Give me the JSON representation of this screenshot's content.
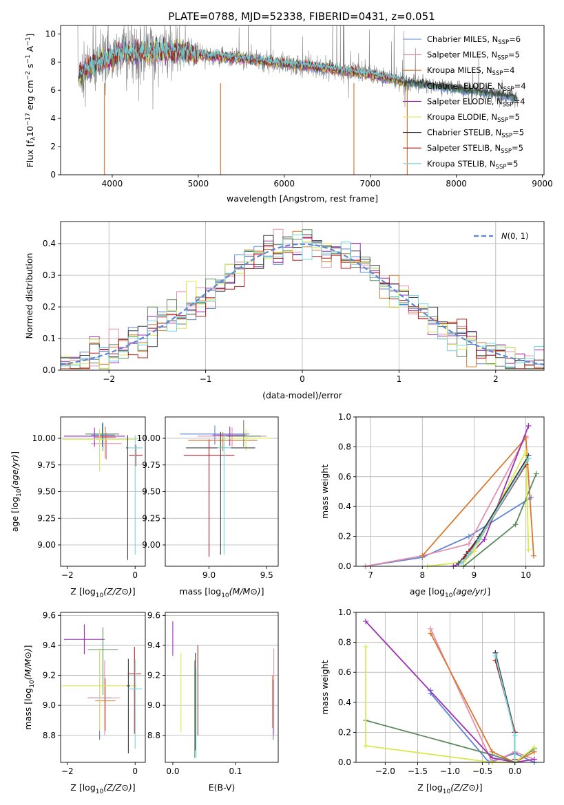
{
  "figure": {
    "title": "PLATE=0788, MJD=52338, FIBERID=0431, z=0.051"
  },
  "colors": {
    "Chabrier MILES": "#5b84d6",
    "Salpeter MILES": "#e58fb0",
    "Kroupa MILES": "#d8782d",
    "Chabrier ELODIE": "#5c8a5c",
    "Salpeter ELODIE": "#9b30b5",
    "Kroupa ELODIE": "#d9e84e",
    "Chabrier STELIB": "#3d3d3d",
    "Salpeter STELIB": "#b01f1f",
    "Kroupa STELIB": "#72d7de",
    "data": "#7f7f7f",
    "normal": "#5b84d6"
  },
  "chart_data": [
    {
      "id": "spectrum",
      "type": "line",
      "title": "PLATE=0788, MJD=52338, FIBERID=0431, z=0.051",
      "xlabel": "wavelength [Angstrom, rest frame]",
      "ylabel_parts": [
        "Flux [f",
        "λ",
        "10",
        "−17",
        " erg cm",
        "−2",
        " s",
        "−1",
        " A",
        "−1",
        "]"
      ],
      "xlim": [
        3400,
        9020
      ],
      "ylim": [
        0,
        10.6
      ],
      "xticks": [
        4000,
        5000,
        6000,
        7000,
        8000,
        9000
      ],
      "yticks": [
        0,
        2,
        4,
        6,
        8,
        10
      ],
      "legend_location": "upper right",
      "legend": [
        {
          "label": "Chabrier MILES, N",
          "sub": "SSP",
          "suffix": "=6",
          "key": "Chabrier MILES"
        },
        {
          "label": "Salpeter MILES, N",
          "sub": "SSP",
          "suffix": "=5",
          "key": "Salpeter MILES"
        },
        {
          "label": "Kroupa MILES, N",
          "sub": "SSP",
          "suffix": "=4",
          "key": "Kroupa MILES"
        },
        {
          "label": "Chabrier ELODIE, N",
          "sub": "SSP",
          "suffix": "=4",
          "key": "Chabrier ELODIE"
        },
        {
          "label": "Salpeter ELODIE, N",
          "sub": "SSP",
          "suffix": "=4",
          "key": "Salpeter ELODIE"
        },
        {
          "label": "Kroupa ELODIE, N",
          "sub": "SSP",
          "suffix": "=5",
          "key": "Kroupa ELODIE"
        },
        {
          "label": "Chabrier STELIB, N",
          "sub": "SSP",
          "suffix": "=5",
          "key": "Chabrier STELIB"
        },
        {
          "label": "Salpeter STELIB, N",
          "sub": "SSP",
          "suffix": "=5",
          "key": "Salpeter STELIB"
        },
        {
          "label": "Kroupa STELIB, N",
          "sub": "SSP",
          "suffix": "=5",
          "key": "Kroupa STELIB"
        }
      ],
      "model_continuum": {
        "x": [
          3600,
          3700,
          3800,
          3900,
          4000,
          4100,
          4200,
          4300,
          4400,
          4600,
          4800,
          5000,
          5200,
          5400,
          5600,
          5800,
          6000,
          6200,
          6400,
          6600,
          6800,
          7000,
          7200,
          7400,
          7600,
          7800,
          8000,
          8200,
          8400,
          8600,
          8700
        ],
        "y": [
          7.0,
          7.4,
          7.8,
          8.1,
          8.4,
          8.6,
          8.7,
          8.6,
          8.7,
          8.8,
          8.7,
          8.6,
          8.4,
          8.3,
          8.2,
          8.0,
          7.9,
          7.75,
          7.6,
          7.45,
          7.3,
          7.1,
          6.9,
          6.6,
          6.45,
          6.3,
          6.1,
          5.95,
          5.8,
          5.6,
          5.45
        ]
      },
      "data_range": [
        3600,
        8720
      ]
    },
    {
      "id": "residual-histogram",
      "type": "line",
      "xlabel": "(data-model)/error",
      "ylabel": "Normed distribution",
      "xlim": [
        -2.5,
        2.5
      ],
      "ylim": [
        0,
        0.47
      ],
      "xticks": [
        -2,
        -1,
        0,
        1,
        2
      ],
      "xtick_labels": [
        "−2",
        "−1",
        "0",
        "1",
        "2"
      ],
      "yticks": [
        0.0,
        0.1,
        0.2,
        0.3,
        0.4
      ],
      "ytick_labels": [
        "0.0",
        "0.1",
        "0.2",
        "0.3",
        "0.4"
      ],
      "grid": true,
      "legend_location": "upper right",
      "legend": [
        {
          "label": "N(0, 1)",
          "key": "normal",
          "style": "dashed"
        }
      ],
      "bins": {
        "start": -2.5,
        "width": 0.1,
        "count": 50
      }
    },
    {
      "id": "age-vs-Z",
      "type": "scatter",
      "xlabel": "Z [log10(Z/Z⊙)]",
      "ylabel": "age  [log10(age/yr)]",
      "xlim": [
        -2.2,
        0.3
      ],
      "ylim": [
        8.8,
        10.2
      ],
      "xticks": [
        -2,
        0
      ],
      "xtick_labels": [
        "−2",
        "0"
      ],
      "yticks": [
        9.0,
        9.25,
        9.5,
        9.75,
        10.0
      ],
      "ytick_labels": [
        "9.00",
        "9.25",
        "9.50",
        "9.75",
        "10.00"
      ],
      "points": [
        {
          "key": "Chabrier MILES",
          "x": -0.95,
          "xerr": 0.35,
          "y": 10.03,
          "yerr": [
            0.15,
            0.12
          ]
        },
        {
          "key": "Salpeter MILES",
          "x": -0.85,
          "xerr": 0.45,
          "y": 9.95,
          "yerr": [
            0.15,
            0.1
          ]
        },
        {
          "key": "Kroupa MILES",
          "x": -0.88,
          "xerr": 0.3,
          "y": 10.01,
          "yerr": [
            0.2,
            0.1
          ]
        },
        {
          "key": "Chabrier ELODIE",
          "x": -0.97,
          "xerr": 0.5,
          "y": 10.04,
          "yerr": [
            0.12,
            0.1
          ]
        },
        {
          "key": "Salpeter ELODIE",
          "x": -1.2,
          "xerr": 0.9,
          "y": 10.02,
          "yerr": [
            0.1,
            0.08
          ]
        },
        {
          "key": "Kroupa ELODIE",
          "x": -1.05,
          "xerr": 1.1,
          "y": 9.99,
          "yerr": [
            0.3,
            0.1
          ]
        },
        {
          "key": "Chabrier STELIB",
          "x": -0.22,
          "xerr": 0.05,
          "y": 9.91,
          "yerr": [
            1.05,
            0.12
          ]
        },
        {
          "key": "Salpeter STELIB",
          "x": 0.02,
          "xerr": 0.2,
          "y": 9.84,
          "yerr": [
            0.1,
            0.1
          ]
        },
        {
          "key": "Kroupa STELIB",
          "x": 0.0,
          "xerr": 0.22,
          "y": 9.91,
          "yerr": [
            1.0,
            0.12
          ]
        }
      ]
    },
    {
      "id": "age-vs-mass",
      "type": "scatter",
      "xlabel": "mass [log10(M/M⊙)]",
      "xlim": [
        8.62,
        9.6
      ],
      "ylim": [
        8.8,
        10.2
      ],
      "xticks": [
        9.0,
        9.5
      ],
      "xtick_labels": [
        "9.0",
        "9.5"
      ],
      "yticks": [
        9.0,
        9.25,
        9.5,
        9.75,
        10.0
      ],
      "ytick_labels": [
        "9.00",
        "9.25",
        "9.50",
        "9.75",
        "10.00"
      ],
      "points": [
        {
          "key": "Chabrier MILES",
          "x": 9.05,
          "xerr": 0.3,
          "y": 10.04,
          "yerr": [
            0.1,
            0.08
          ]
        },
        {
          "key": "Salpeter MILES",
          "x": 9.2,
          "xerr": 0.3,
          "y": 10.02,
          "yerr": [
            0.1,
            0.08
          ]
        },
        {
          "key": "Kroupa MILES",
          "x": 9.12,
          "xerr": 0.3,
          "y": 9.98,
          "yerr": [
            0.1,
            0.08
          ]
        },
        {
          "key": "Chabrier ELODIE",
          "x": 9.3,
          "xerr": 0.15,
          "y": 10.02,
          "yerr": [
            0.1,
            0.15
          ]
        },
        {
          "key": "Salpeter ELODIE",
          "x": 9.18,
          "xerr": 0.15,
          "y": 10.03,
          "yerr": [
            0.1,
            0.08
          ]
        },
        {
          "key": "Kroupa ELODIE",
          "x": 9.32,
          "xerr": 0.22,
          "y": 10.0,
          "yerr": [
            0.12,
            0.08
          ]
        },
        {
          "key": "Chabrier STELIB",
          "x": 9.1,
          "xerr": 0.3,
          "y": 9.91,
          "yerr": [
            1.0,
            0.15
          ]
        },
        {
          "key": "Salpeter STELIB",
          "x": 9.0,
          "xerr": 0.22,
          "y": 9.84,
          "yerr": [
            0.95,
            0.15
          ]
        },
        {
          "key": "Kroupa STELIB",
          "x": 9.13,
          "xerr": 0.06,
          "y": 9.91,
          "yerr": [
            1.0,
            0.12
          ]
        }
      ]
    },
    {
      "id": "mass-weight-vs-age",
      "type": "line",
      "xlabel": "age  [log10(age/yr)]",
      "ylabel": "mass weight",
      "xlim": [
        6.72,
        10.35
      ],
      "ylim": [
        0,
        1.0
      ],
      "xticks": [
        7,
        8,
        9,
        10
      ],
      "yticks": [
        0.0,
        0.2,
        0.4,
        0.6,
        0.8,
        1.0
      ],
      "ytick_labels": [
        "0.0",
        "0.2",
        "0.4",
        "0.6",
        "0.8",
        "1.0"
      ],
      "grid": true,
      "series": [
        {
          "key": "Chabrier MILES",
          "x": [
            6.9,
            8.0,
            8.9,
            10.1
          ],
          "y": [
            0.0,
            0.06,
            0.2,
            0.46
          ]
        },
        {
          "key": "Salpeter MILES",
          "x": [
            6.9,
            8.0,
            8.9,
            10.0
          ],
          "y": [
            0.0,
            0.07,
            0.15,
            0.87
          ]
        },
        {
          "key": "Kroupa MILES",
          "x": [
            8.0,
            10.0,
            10.15
          ],
          "y": [
            0.07,
            0.86,
            0.07
          ]
        },
        {
          "key": "Chabrier ELODIE",
          "x": [
            8.8,
            9.8,
            10.2
          ],
          "y": [
            0.0,
            0.28,
            0.62
          ]
        },
        {
          "key": "Salpeter ELODIE",
          "x": [
            8.6,
            8.8,
            9.2,
            10.05
          ],
          "y": [
            0.0,
            0.03,
            0.18,
            0.94
          ]
        },
        {
          "key": "Kroupa ELODIE",
          "x": [
            8.1,
            8.8,
            9.0,
            10.0,
            10.05
          ],
          "y": [
            0.0,
            0.03,
            0.1,
            0.77,
            0.11
          ]
        },
        {
          "key": "Chabrier STELIB",
          "x": [
            8.7,
            8.85,
            9.1,
            10.05
          ],
          "y": [
            0.02,
            0.08,
            0.2,
            0.74
          ]
        },
        {
          "key": "Salpeter STELIB",
          "x": [
            8.8,
            8.9,
            9.1,
            10.0
          ],
          "y": [
            0.05,
            0.1,
            0.18,
            0.68
          ]
        },
        {
          "key": "Kroupa STELIB",
          "x": [
            8.75,
            8.9,
            9.1,
            10.05
          ],
          "y": [
            0.02,
            0.08,
            0.18,
            0.72
          ]
        }
      ]
    },
    {
      "id": "mass-vs-Z",
      "type": "scatter",
      "xlabel": "Z [log10(Z/Z⊙)]",
      "ylabel": "mass [log10(M/M⊙)]",
      "xlim": [
        -2.2,
        0.3
      ],
      "ylim": [
        8.62,
        9.62
      ],
      "xticks": [
        -2,
        0
      ],
      "xtick_labels": [
        "−2",
        "0"
      ],
      "yticks": [
        8.8,
        9.0,
        9.2,
        9.4,
        9.6
      ],
      "ytick_labels": [
        "8.8",
        "9.0",
        "9.2",
        "9.4",
        "9.6"
      ],
      "points": [
        {
          "key": "Chabrier MILES",
          "x": -1.05,
          "xerr": 0.35,
          "y": 9.05,
          "yerr": [
            0.28,
            0.3
          ]
        },
        {
          "key": "Salpeter MILES",
          "x": -0.9,
          "xerr": 0.45,
          "y": 9.05,
          "yerr": [
            0.25,
            0.25
          ]
        },
        {
          "key": "Kroupa MILES",
          "x": -0.88,
          "xerr": 0.3,
          "y": 9.03,
          "yerr": [
            0.2,
            0.15
          ]
        },
        {
          "key": "Chabrier ELODIE",
          "x": -0.95,
          "xerr": 0.45,
          "y": 9.37,
          "yerr": [
            0.3,
            0.15
          ]
        },
        {
          "key": "Salpeter ELODIE",
          "x": -1.5,
          "xerr": 0.6,
          "y": 9.44,
          "yerr": [
            0.1,
            0.1
          ]
        },
        {
          "key": "Kroupa ELODIE",
          "x": -1.05,
          "xerr": 1.1,
          "y": 9.13,
          "yerr": [
            0.3,
            0.25
          ]
        },
        {
          "key": "Chabrier STELIB",
          "x": -0.2,
          "xerr": 0.05,
          "y": 9.13,
          "yerr": [
            0.45,
            0.18
          ]
        },
        {
          "key": "Salpeter STELIB",
          "x": -0.02,
          "xerr": 0.2,
          "y": 9.21,
          "yerr": [
            0.4,
            0.18
          ]
        },
        {
          "key": "Kroupa STELIB",
          "x": 0.0,
          "xerr": 0.2,
          "y": 9.11,
          "yerr": [
            0.4,
            0.2
          ]
        }
      ]
    },
    {
      "id": "mass-vs-EBV",
      "type": "scatter",
      "xlabel": "E(B-V)",
      "xlim": [
        -0.012,
        0.168
      ],
      "ylim": [
        8.62,
        9.62
      ],
      "xticks": [
        0.0,
        0.1
      ],
      "xtick_labels": [
        "0.0",
        "0.1"
      ],
      "yticks": [
        8.8,
        9.0,
        9.2,
        9.4,
        9.6
      ],
      "ytick_labels": [
        "8.8",
        "9.0",
        "9.2",
        "9.4",
        "9.6"
      ],
      "points": [
        {
          "key": "Chabrier MILES",
          "x": 0.16,
          "xerr": 0.0,
          "y": 8.97,
          "yerr": [
            0.2,
            0.2
          ]
        },
        {
          "key": "Salpeter MILES",
          "x": 0.161,
          "xerr": 0.0,
          "y": 9.1,
          "yerr": [
            0.3,
            0.28
          ]
        },
        {
          "key": "Kroupa MILES",
          "x": 0.159,
          "xerr": 0.0,
          "y": 9.0,
          "yerr": [
            0.15,
            0.2
          ]
        },
        {
          "key": "Chabrier ELODIE",
          "x": 0.035,
          "xerr": 0.0,
          "y": 9.0,
          "yerr": [
            0.35,
            0.3
          ]
        },
        {
          "key": "Salpeter ELODIE",
          "x": 0.0,
          "xerr": 0.0,
          "y": 9.48,
          "yerr": [
            0.15,
            0.08
          ]
        },
        {
          "key": "Kroupa ELODIE",
          "x": 0.013,
          "xerr": 0.0,
          "y": 9.1,
          "yerr": [
            0.28,
            0.25
          ]
        },
        {
          "key": "Chabrier STELIB",
          "x": 0.036,
          "xerr": 0.0,
          "y": 9.05,
          "yerr": [
            0.35,
            0.3
          ]
        },
        {
          "key": "Salpeter STELIB",
          "x": 0.04,
          "xerr": 0.0,
          "y": 9.1,
          "yerr": [
            0.3,
            0.3
          ]
        },
        {
          "key": "Kroupa STELIB",
          "x": 0.037,
          "xerr": 0.0,
          "y": 8.95,
          "yerr": [
            0.3,
            0.3
          ]
        }
      ]
    },
    {
      "id": "mass-weight-vs-Z",
      "type": "line",
      "xlabel": "Z [log10(Z/Z⊙)]",
      "ylabel": "mass weight",
      "xlim": [
        -2.45,
        0.45
      ],
      "ylim": [
        0,
        1.0
      ],
      "xticks": [
        -2.0,
        -1.5,
        -1.0,
        -0.5,
        0.0
      ],
      "xtick_labels": [
        "−2.0",
        "−1.5",
        "−1.0",
        "−0.5",
        "0.0"
      ],
      "yticks": [
        0.0,
        0.2,
        0.4,
        0.6,
        0.8,
        1.0
      ],
      "ytick_labels": [
        "0.0",
        "0.2",
        "0.4",
        "0.6",
        "0.8",
        "1.0"
      ],
      "grid": true,
      "series": [
        {
          "key": "Chabrier MILES",
          "x": [
            -1.3,
            -1.3,
            -0.4,
            0.0,
            0.3
          ],
          "y": [
            0.48,
            0.46,
            0.0,
            0.06,
            0.0
          ]
        },
        {
          "key": "Salpeter MILES",
          "x": [
            -1.3,
            -0.35,
            0.0,
            0.3
          ],
          "y": [
            0.89,
            0.0,
            0.07,
            0.02
          ]
        },
        {
          "key": "Kroupa MILES",
          "x": [
            -1.3,
            -0.35,
            0.0,
            0.3
          ],
          "y": [
            0.86,
            0.07,
            0.0,
            0.07
          ]
        },
        {
          "key": "Chabrier ELODIE",
          "x": [
            -2.3,
            -0.35,
            0.0,
            0.3
          ],
          "y": [
            0.28,
            0.05,
            0.0,
            0.09
          ]
        },
        {
          "key": "Salpeter ELODIE",
          "x": [
            -2.3,
            -0.35,
            0.0,
            0.3
          ],
          "y": [
            0.94,
            0.03,
            0.0,
            0.02
          ]
        },
        {
          "key": "Kroupa ELODIE",
          "x": [
            -2.3,
            -2.3,
            -0.35,
            0.0,
            0.3
          ],
          "y": [
            0.77,
            0.11,
            0.0,
            0.0,
            0.1
          ]
        },
        {
          "key": "Chabrier STELIB",
          "x": [
            -0.3,
            0.0,
            0.0
          ],
          "y": [
            0.73,
            0.2,
            0.0
          ]
        },
        {
          "key": "Salpeter STELIB",
          "x": [
            -0.3,
            0.0,
            0.0
          ],
          "y": [
            0.68,
            0.2,
            0.02
          ]
        },
        {
          "key": "Kroupa STELIB",
          "x": [
            -0.3,
            0.0,
            0.0
          ],
          "y": [
            0.71,
            0.18,
            0.0
          ]
        }
      ]
    }
  ]
}
